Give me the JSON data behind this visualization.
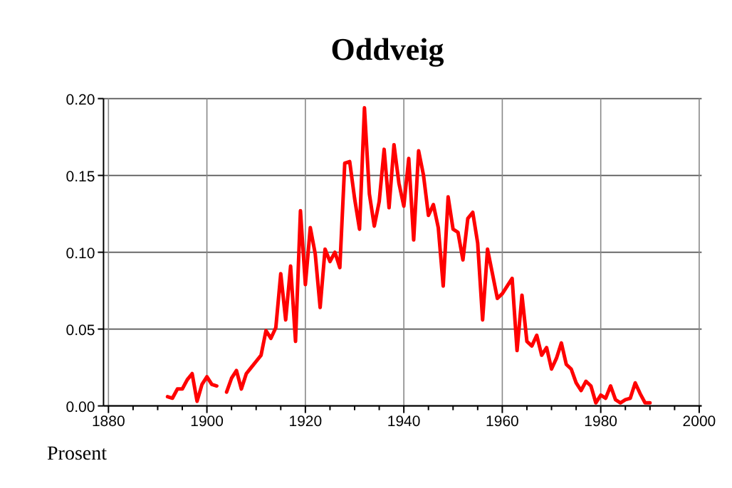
{
  "chart_data": {
    "type": "line",
    "title": "Oddveig",
    "ylabel": "Prosent",
    "x": [
      1892,
      1893,
      1894,
      1895,
      1896,
      1897,
      1898,
      1899,
      1900,
      1901,
      1902,
      1903,
      1904,
      1905,
      1906,
      1907,
      1908,
      1909,
      1910,
      1911,
      1912,
      1913,
      1914,
      1915,
      1916,
      1917,
      1918,
      1919,
      1920,
      1921,
      1922,
      1923,
      1924,
      1925,
      1926,
      1927,
      1928,
      1929,
      1930,
      1931,
      1932,
      1933,
      1934,
      1935,
      1936,
      1937,
      1938,
      1939,
      1940,
      1941,
      1942,
      1943,
      1944,
      1945,
      1946,
      1947,
      1948,
      1949,
      1950,
      1951,
      1952,
      1953,
      1954,
      1955,
      1956,
      1957,
      1958,
      1959,
      1960,
      1961,
      1962,
      1963,
      1964,
      1965,
      1966,
      1967,
      1968,
      1969,
      1970,
      1971,
      1972,
      1973,
      1974,
      1975,
      1976,
      1977,
      1978,
      1979,
      1980,
      1981,
      1982,
      1983,
      1984,
      1985,
      1986,
      1987,
      1988,
      1989,
      1990
    ],
    "series": [
      {
        "color": "#ff0000",
        "values": [
          0.006,
          0.005,
          0.011,
          0.011,
          0.017,
          0.021,
          0.003,
          0.014,
          0.019,
          0.014,
          0.013,
          null,
          0.009,
          0.018,
          0.023,
          0.011,
          0.021,
          0.025,
          0.029,
          0.033,
          0.049,
          0.044,
          0.051,
          0.086,
          0.056,
          0.091,
          0.042,
          0.127,
          0.079,
          0.116,
          0.099,
          0.064,
          0.102,
          0.094,
          0.1,
          0.09,
          0.158,
          0.159,
          0.135,
          0.115,
          0.194,
          0.138,
          0.117,
          0.133,
          0.167,
          0.129,
          0.17,
          0.145,
          0.13,
          0.161,
          0.108,
          0.166,
          0.15,
          0.124,
          0.131,
          0.116,
          0.078,
          0.136,
          0.115,
          0.113,
          0.095,
          0.122,
          0.126,
          0.106,
          0.056,
          0.102,
          0.086,
          0.07,
          0.073,
          0.078,
          0.083,
          0.036,
          0.072,
          0.042,
          0.039,
          0.046,
          0.033,
          0.038,
          0.024,
          0.031,
          0.041,
          0.027,
          0.024,
          0.015,
          0.01,
          0.016,
          0.013,
          0.002,
          0.007,
          0.005,
          0.013,
          0.004,
          0.002,
          0.004,
          0.005,
          0.015,
          0.008,
          0.002,
          0.002
        ]
      }
    ],
    "xlim": [
      1879,
      2000.5
    ],
    "xticks": [
      1880,
      {
        "value": 1885,
        "label": null
      },
      {
        "value": 1890,
        "label": null
      },
      {
        "value": 1895,
        "label": null
      },
      1900,
      {
        "value": 1905,
        "label": null
      },
      {
        "value": 1910,
        "label": null
      },
      {
        "value": 1915,
        "label": null
      },
      1920,
      {
        "value": 1925,
        "label": null
      },
      {
        "value": 1930,
        "label": null
      },
      {
        "value": 1935,
        "label": null
      },
      1940,
      {
        "value": 1945,
        "label": null
      },
      {
        "value": 1950,
        "label": null
      },
      {
        "value": 1955,
        "label": null
      },
      1960,
      {
        "value": 1965,
        "label": null
      },
      {
        "value": 1970,
        "label": null
      },
      {
        "value": 1975,
        "label": null
      },
      1980,
      {
        "value": 1985,
        "label": null
      },
      {
        "value": 1990,
        "label": null
      },
      {
        "value": 1995,
        "label": null
      },
      2000
    ],
    "ylim": [
      0,
      0.2
    ],
    "yticks": [
      {
        "value": 0,
        "label": "0.00"
      },
      {
        "value": 0.05,
        "label": "0.05"
      },
      {
        "value": 0.1,
        "label": "0.10"
      },
      {
        "value": 0.15,
        "label": "0.15"
      },
      {
        "value": 0.2,
        "label": "0.20"
      }
    ],
    "grid": true,
    "line_style": "solid",
    "marker": "none"
  }
}
